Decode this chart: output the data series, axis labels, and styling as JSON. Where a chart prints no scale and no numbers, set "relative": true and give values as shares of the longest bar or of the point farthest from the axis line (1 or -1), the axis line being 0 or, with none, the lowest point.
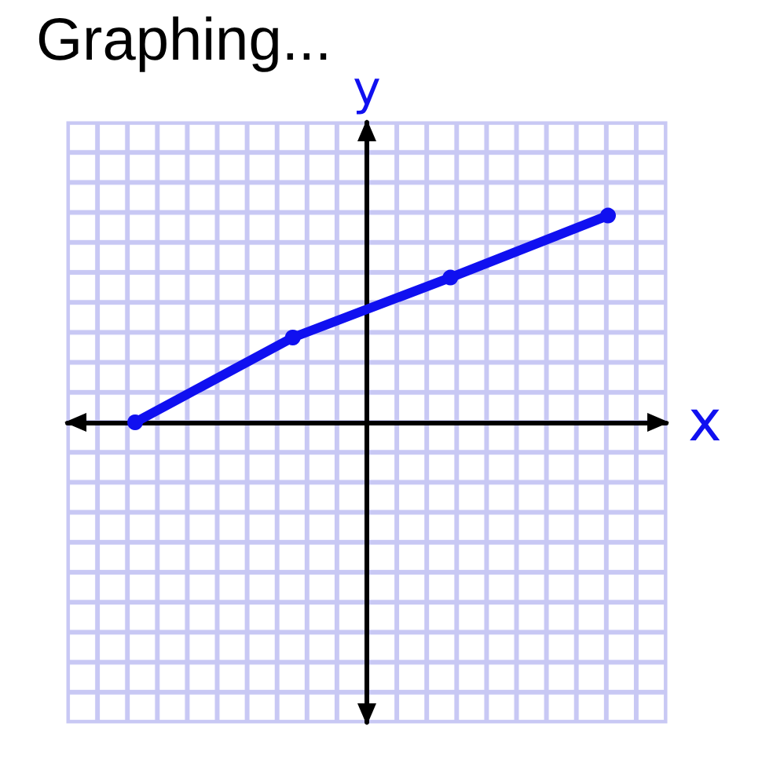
{
  "chart_data": {
    "type": "line",
    "title": "Graphing...",
    "xlabel": "x",
    "ylabel": "y",
    "relative": true,
    "categories": [
      null,
      null,
      null,
      null
    ],
    "series": [
      {
        "color": "#1010f0",
        "values": [
          0,
          0.41,
          0.7,
          1
        ]
      }
    ],
    "marker": "circle",
    "line_style": "solid"
  }
}
